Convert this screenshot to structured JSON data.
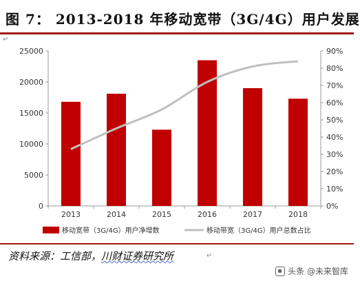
{
  "header": {
    "title": "图 7： 2013-2018 年移动宽带（3G/4G）用户发展"
  },
  "footer": {
    "source_prefix": "资料来源：工信部，",
    "source_suffix": "川财证券研究所",
    "watermark": "头条 @未来智库"
  },
  "chart_data": {
    "type": "bar",
    "categories": [
      "2013",
      "2014",
      "2015",
      "2016",
      "2017",
      "2018"
    ],
    "series": [
      {
        "name": "移动宽带（3G/4G）用户净增数",
        "type": "bar",
        "axis": "left",
        "color": "#c00000",
        "values": [
          16800,
          18100,
          12300,
          23500,
          19000,
          17300
        ]
      },
      {
        "name": "移动带宽（3G/4G）用户总数占比",
        "type": "line",
        "axis": "right",
        "color": "#bfbfbf",
        "values": [
          0.33,
          0.45,
          0.56,
          0.72,
          0.81,
          0.84
        ]
      }
    ],
    "y_left": {
      "min": 0,
      "max": 25000,
      "ticks": [
        "0",
        "5000",
        "10000",
        "15000",
        "20000",
        "25000"
      ]
    },
    "y_right": {
      "min": 0,
      "max": 0.9,
      "ticks": [
        "0%",
        "10%",
        "20%",
        "30%",
        "40%",
        "50%",
        "60%",
        "70%",
        "80%",
        "90%"
      ]
    },
    "grid": false,
    "legend_position": "bottom"
  }
}
